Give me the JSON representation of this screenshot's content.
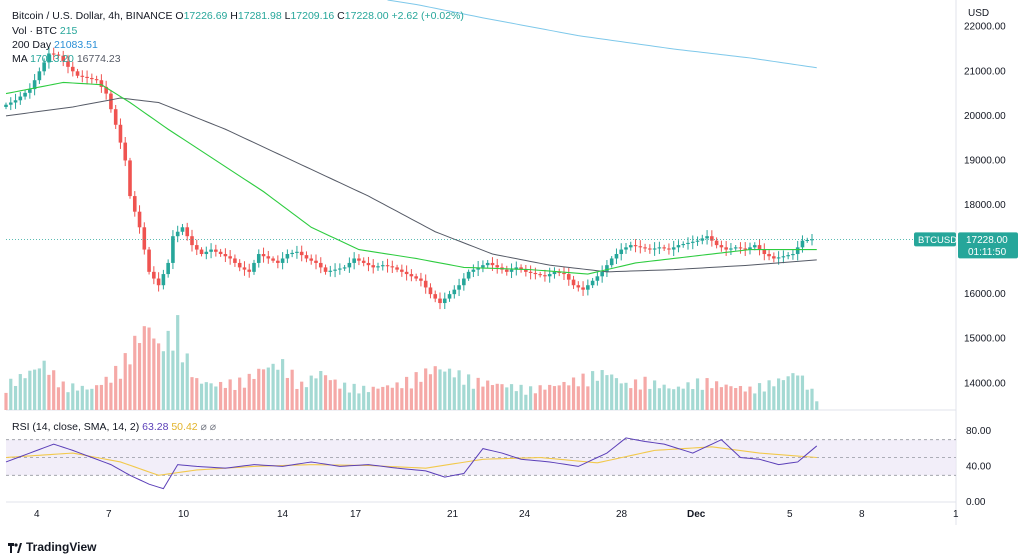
{
  "header": {
    "symbol": "Bitcoin / U.S. Dollar, 4h, BINANCE",
    "o_label": "O",
    "o_value": "17226.69",
    "h_label": "H",
    "h_value": "17281.98",
    "l_label": "L",
    "l_value": "17209.16",
    "c_label": "C",
    "c_value": "17228.00",
    "change": "+2.62 (+0.02%)",
    "vol_label": "Vol · BTC",
    "vol_value": "215",
    "day200_label": "200 Day",
    "day200_value": "21083.51",
    "ma_label": "MA",
    "ma_value1": "17013.20",
    "ma_value2": "16774.23"
  },
  "price_axis": {
    "currency": "USD",
    "ticks": [
      "22000.00",
      "21000.00",
      "20000.00",
      "19000.00",
      "18000.00",
      "17000.00",
      "16000.00",
      "15000.00",
      "14000.00"
    ],
    "last_price": "17228.00",
    "symbol_tag": "BTCUSD",
    "countdown": "01:11:50"
  },
  "rsi": {
    "label": "RSI (14, close, SMA, 14, 2)",
    "value1": "63.28",
    "value2": "50.42",
    "ticks": [
      "80.00",
      "40.00",
      "0.00"
    ]
  },
  "time_axis": {
    "labels": [
      "4",
      "7",
      "10",
      "14",
      "17",
      "21",
      "24",
      "28",
      "Dec",
      "5",
      "8",
      "1"
    ]
  },
  "brand": {
    "name": "TradingView"
  },
  "colors": {
    "up": "#26a69a",
    "down": "#ef5350",
    "ma_fast": "#2ecc40",
    "ma_slow": "#555a66",
    "day200": "#7ec8ea",
    "rsi": "#5b3fb8",
    "rsi_sma": "#f2c94c"
  },
  "chart_data": {
    "type": "candlestick",
    "title": "Bitcoin / U.S. Dollar, 4h, BINANCE",
    "ylabel": "USD",
    "ylim": [
      13400,
      22600
    ],
    "price_path": [
      [
        0,
        20200
      ],
      [
        3,
        20350
      ],
      [
        6,
        20600
      ],
      [
        8,
        21000
      ],
      [
        10,
        21400
      ],
      [
        12,
        21350
      ],
      [
        14,
        21100
      ],
      [
        16,
        20900
      ],
      [
        18,
        20850
      ],
      [
        20,
        20800
      ],
      [
        22,
        20500
      ],
      [
        24,
        19800
      ],
      [
        26,
        19000
      ],
      [
        27,
        18200
      ],
      [
        29,
        17500
      ],
      [
        31,
        16500
      ],
      [
        33,
        16200
      ],
      [
        35,
        16700
      ],
      [
        36,
        17300
      ],
      [
        38,
        17500
      ],
      [
        40,
        17100
      ],
      [
        42,
        16900
      ],
      [
        44,
        17000
      ],
      [
        46,
        16900
      ],
      [
        48,
        16800
      ],
      [
        50,
        16600
      ],
      [
        52,
        16500
      ],
      [
        54,
        16900
      ],
      [
        56,
        16800
      ],
      [
        58,
        16700
      ],
      [
        60,
        16900
      ],
      [
        62,
        16950
      ],
      [
        64,
        16800
      ],
      [
        66,
        16700
      ],
      [
        68,
        16500
      ],
      [
        70,
        16550
      ],
      [
        72,
        16600
      ],
      [
        74,
        16800
      ],
      [
        76,
        16700
      ],
      [
        78,
        16600
      ],
      [
        80,
        16650
      ],
      [
        82,
        16600
      ],
      [
        84,
        16500
      ],
      [
        86,
        16400
      ],
      [
        88,
        16300
      ],
      [
        90,
        16000
      ],
      [
        92,
        15800
      ],
      [
        94,
        16000
      ],
      [
        96,
        16200
      ],
      [
        98,
        16500
      ],
      [
        100,
        16600
      ],
      [
        102,
        16700
      ],
      [
        104,
        16600
      ],
      [
        106,
        16500
      ],
      [
        108,
        16600
      ],
      [
        110,
        16500
      ],
      [
        112,
        16450
      ],
      [
        114,
        16400
      ],
      [
        116,
        16500
      ],
      [
        118,
        16450
      ],
      [
        120,
        16200
      ],
      [
        122,
        16100
      ],
      [
        124,
        16300
      ],
      [
        126,
        16500
      ],
      [
        128,
        16800
      ],
      [
        130,
        17000
      ],
      [
        132,
        17100
      ],
      [
        134,
        17050
      ],
      [
        136,
        17000
      ],
      [
        138,
        17050
      ],
      [
        140,
        17000
      ],
      [
        142,
        17100
      ],
      [
        144,
        17150
      ],
      [
        146,
        17200
      ],
      [
        148,
        17300
      ],
      [
        150,
        17100
      ],
      [
        152,
        17000
      ],
      [
        154,
        17050
      ],
      [
        156,
        17000
      ],
      [
        158,
        17100
      ],
      [
        160,
        16900
      ],
      [
        162,
        16800
      ],
      [
        164,
        16850
      ],
      [
        166,
        16900
      ],
      [
        168,
        17200
      ],
      [
        170,
        17230
      ]
    ],
    "ma_fast": [
      [
        0,
        20500
      ],
      [
        12,
        20750
      ],
      [
        20,
        20700
      ],
      [
        26,
        20300
      ],
      [
        34,
        19700
      ],
      [
        44,
        19000
      ],
      [
        54,
        18300
      ],
      [
        64,
        17500
      ],
      [
        74,
        17000
      ],
      [
        86,
        16800
      ],
      [
        96,
        16600
      ],
      [
        110,
        16550
      ],
      [
        122,
        16450
      ],
      [
        132,
        16700
      ],
      [
        144,
        16850
      ],
      [
        156,
        17000
      ],
      [
        170,
        17000
      ]
    ],
    "ma_slow": [
      [
        0,
        20000
      ],
      [
        14,
        20200
      ],
      [
        24,
        20400
      ],
      [
        32,
        20300
      ],
      [
        46,
        19700
      ],
      [
        60,
        19000
      ],
      [
        76,
        18200
      ],
      [
        90,
        17400
      ],
      [
        102,
        16900
      ],
      [
        114,
        16650
      ],
      [
        126,
        16500
      ],
      [
        140,
        16550
      ],
      [
        156,
        16650
      ],
      [
        170,
        16770
      ]
    ],
    "day200": [
      [
        80,
        22600
      ],
      [
        86,
        22500
      ],
      [
        100,
        22200
      ],
      [
        120,
        21800
      ],
      [
        140,
        21500
      ],
      [
        156,
        21300
      ],
      [
        170,
        21080
      ]
    ],
    "volume": [
      [
        0,
        0.3,
        0
      ],
      [
        5,
        0.45,
        1
      ],
      [
        8,
        0.55,
        1
      ],
      [
        12,
        0.3,
        0
      ],
      [
        18,
        0.25,
        1
      ],
      [
        22,
        0.4,
        0
      ],
      [
        25,
        0.6,
        0
      ],
      [
        27,
        0.8,
        0
      ],
      [
        28,
        0.9,
        0
      ],
      [
        30,
        1.0,
        0
      ],
      [
        32,
        0.75,
        0
      ],
      [
        34,
        0.85,
        1
      ],
      [
        36,
        1.0,
        1
      ],
      [
        38,
        0.6,
        1
      ],
      [
        40,
        0.35,
        0
      ],
      [
        44,
        0.3,
        1
      ],
      [
        50,
        0.35,
        0
      ],
      [
        54,
        0.5,
        0
      ],
      [
        58,
        0.55,
        1
      ],
      [
        62,
        0.3,
        0
      ],
      [
        66,
        0.45,
        1
      ],
      [
        70,
        0.3,
        0
      ],
      [
        76,
        0.25,
        1
      ],
      [
        82,
        0.3,
        0
      ],
      [
        86,
        0.4,
        0
      ],
      [
        90,
        0.5,
        0
      ],
      [
        94,
        0.45,
        1
      ],
      [
        98,
        0.35,
        1
      ],
      [
        104,
        0.3,
        0
      ],
      [
        110,
        0.25,
        1
      ],
      [
        116,
        0.3,
        0
      ],
      [
        122,
        0.4,
        0
      ],
      [
        126,
        0.45,
        1
      ],
      [
        130,
        0.3,
        1
      ],
      [
        134,
        0.35,
        0
      ],
      [
        140,
        0.25,
        1
      ],
      [
        146,
        0.35,
        1
      ],
      [
        150,
        0.3,
        0
      ],
      [
        156,
        0.25,
        0
      ],
      [
        162,
        0.35,
        1
      ],
      [
        166,
        0.45,
        1
      ],
      [
        170,
        0.15,
        1
      ]
    ],
    "rsi_path": [
      [
        0,
        45
      ],
      [
        5,
        55
      ],
      [
        10,
        65
      ],
      [
        14,
        58
      ],
      [
        18,
        50
      ],
      [
        22,
        42
      ],
      [
        26,
        30
      ],
      [
        30,
        20
      ],
      [
        33,
        15
      ],
      [
        36,
        42
      ],
      [
        40,
        40
      ],
      [
        46,
        38
      ],
      [
        52,
        42
      ],
      [
        58,
        40
      ],
      [
        64,
        45
      ],
      [
        70,
        40
      ],
      [
        76,
        42
      ],
      [
        82,
        38
      ],
      [
        88,
        35
      ],
      [
        92,
        28
      ],
      [
        96,
        32
      ],
      [
        100,
        60
      ],
      [
        104,
        55
      ],
      [
        108,
        48
      ],
      [
        114,
        45
      ],
      [
        120,
        40
      ],
      [
        126,
        55
      ],
      [
        130,
        72
      ],
      [
        134,
        68
      ],
      [
        138,
        65
      ],
      [
        144,
        55
      ],
      [
        150,
        70
      ],
      [
        154,
        50
      ],
      [
        158,
        48
      ],
      [
        162,
        42
      ],
      [
        166,
        45
      ],
      [
        170,
        63
      ]
    ],
    "rsi_sma_path": [
      [
        0,
        50
      ],
      [
        14,
        55
      ],
      [
        24,
        45
      ],
      [
        32,
        30
      ],
      [
        40,
        36
      ],
      [
        52,
        40
      ],
      [
        64,
        42
      ],
      [
        76,
        41
      ],
      [
        88,
        38
      ],
      [
        100,
        48
      ],
      [
        112,
        50
      ],
      [
        124,
        44
      ],
      [
        136,
        58
      ],
      [
        148,
        62
      ],
      [
        158,
        55
      ],
      [
        170,
        50
      ]
    ]
  }
}
